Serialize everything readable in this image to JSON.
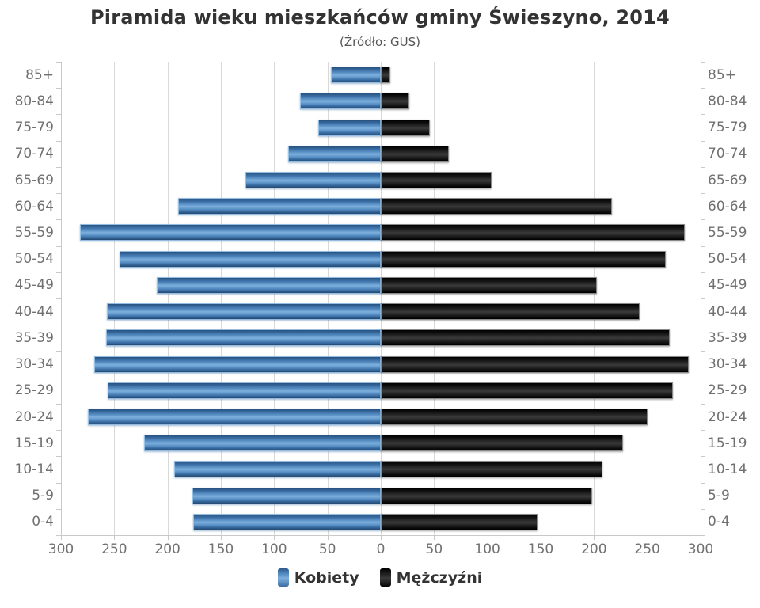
{
  "title": "Piramida wieku mieszkańców gminy Świeszyno, 2014",
  "subtitle": "(Źródło: GUS)",
  "colors": {
    "female_bar": "#5b94c9",
    "male_bar": "#1a1a1a",
    "axis_label": "#707070",
    "title_text": "#333333",
    "gridline": "#d9d9d9"
  },
  "chart_data": {
    "type": "bar",
    "subtype": "population-pyramid",
    "title": "Piramida wieku mieszkańców gminy Świeszyno, 2014",
    "subtitle": "(Źródło: GUS)",
    "categories": [
      "85+",
      "80-84",
      "75-79",
      "70-74",
      "65-69",
      "60-64",
      "55-59",
      "50-54",
      "45-49",
      "40-44",
      "35-39",
      "30-34",
      "25-29",
      "20-24",
      "15-19",
      "10-14",
      "5-9",
      "0-4"
    ],
    "series": [
      {
        "name": "Kobiety",
        "side": "left",
        "color": "#5b94c9",
        "values": [
          47,
          76,
          59,
          87,
          127,
          190,
          282,
          245,
          210,
          257,
          258,
          269,
          256,
          275,
          222,
          194,
          177,
          176
        ]
      },
      {
        "name": "Mężczyźni",
        "side": "right",
        "color": "#1a1a1a",
        "values": [
          9,
          27,
          46,
          64,
          104,
          217,
          285,
          267,
          203,
          243,
          271,
          289,
          274,
          250,
          227,
          208,
          198,
          147
        ]
      }
    ],
    "axis_max": 300,
    "xlabel_ticks": [
      300,
      250,
      200,
      150,
      100,
      50,
      0,
      50,
      100,
      150,
      200,
      250,
      300
    ],
    "grid": true,
    "legend_position": "bottom"
  }
}
